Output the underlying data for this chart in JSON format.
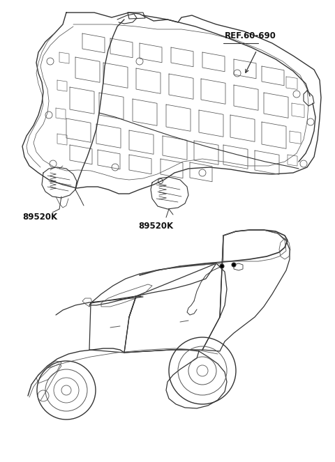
{
  "bg_color": "#ffffff",
  "line_color": "#333333",
  "line_color_thin": "#555555",
  "ref_label": "REF.60-690",
  "part_label_1": "89520K",
  "part_label_2": "89520K",
  "fig_width": 4.8,
  "fig_height": 6.63,
  "dpi": 100
}
